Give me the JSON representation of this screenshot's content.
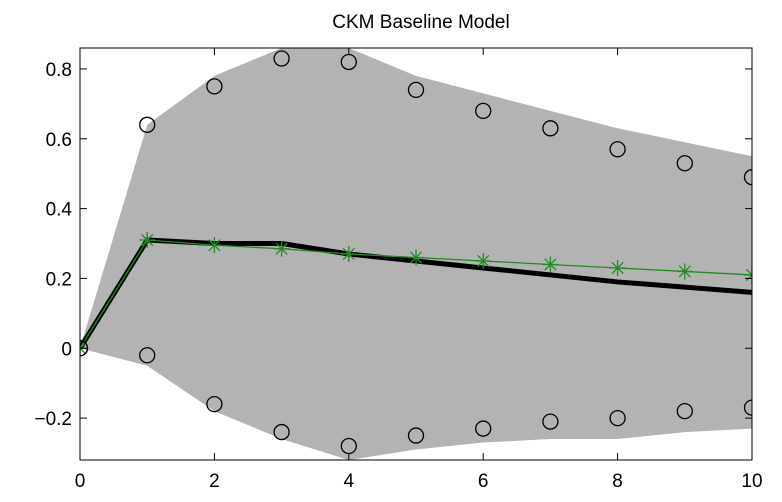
{
  "chart_data": {
    "type": "line",
    "title": "CKM Baseline Model",
    "xlabel": "",
    "ylabel": "",
    "xlim": [
      0,
      10
    ],
    "ylim": [
      -0.32,
      0.86
    ],
    "x_ticks": [
      0,
      2,
      4,
      6,
      8,
      10
    ],
    "x_tick_labels": [
      "0",
      "2",
      "4",
      "6",
      "8",
      "10"
    ],
    "y_ticks": [
      -0.2,
      0,
      0.2,
      0.4,
      0.6,
      0.8
    ],
    "y_tick_labels": [
      "−0.2",
      "0",
      "0.2",
      "0.4",
      "0.6",
      "0.8"
    ],
    "grid": false,
    "legend": "none",
    "band": {
      "x": [
        0,
        1,
        2,
        3,
        4,
        5,
        6,
        7,
        8,
        9,
        10
      ],
      "upper": [
        0.0,
        0.64,
        0.78,
        0.86,
        0.86,
        0.78,
        0.73,
        0.68,
        0.63,
        0.59,
        0.55
      ],
      "lower": [
        0.0,
        -0.05,
        -0.18,
        -0.26,
        -0.32,
        -0.29,
        -0.27,
        -0.26,
        -0.26,
        -0.24,
        -0.23
      ],
      "color": "#b3b3b3"
    },
    "series": [
      {
        "style": "thick-line",
        "color": "#000000",
        "x": [
          0,
          1,
          2,
          3,
          4,
          5,
          6,
          7,
          8,
          9,
          10
        ],
        "values": [
          0.0,
          0.31,
          0.3,
          0.3,
          0.27,
          0.25,
          0.23,
          0.21,
          0.19,
          0.175,
          0.16
        ]
      },
      {
        "style": "line-star",
        "color": "#228b22",
        "x": [
          0,
          1,
          2,
          3,
          4,
          5,
          6,
          7,
          8,
          9,
          10
        ],
        "values": [
          0.0,
          0.31,
          0.295,
          0.285,
          0.27,
          0.26,
          0.25,
          0.24,
          0.23,
          0.22,
          0.21
        ]
      },
      {
        "style": "circle-markers",
        "color": "#000000",
        "x": [
          0,
          1,
          2,
          3,
          4,
          5,
          6,
          7,
          8,
          9,
          10
        ],
        "values": [
          0.0,
          0.64,
          0.75,
          0.83,
          0.82,
          0.74,
          0.68,
          0.63,
          0.57,
          0.53,
          0.49
        ]
      },
      {
        "style": "circle-markers",
        "color": "#000000",
        "x": [
          0,
          1,
          2,
          3,
          4,
          5,
          6,
          7,
          8,
          9,
          10
        ],
        "values": [
          0.0,
          -0.02,
          -0.16,
          -0.24,
          -0.28,
          -0.25,
          -0.23,
          -0.21,
          -0.2,
          -0.18,
          -0.17
        ]
      }
    ]
  }
}
